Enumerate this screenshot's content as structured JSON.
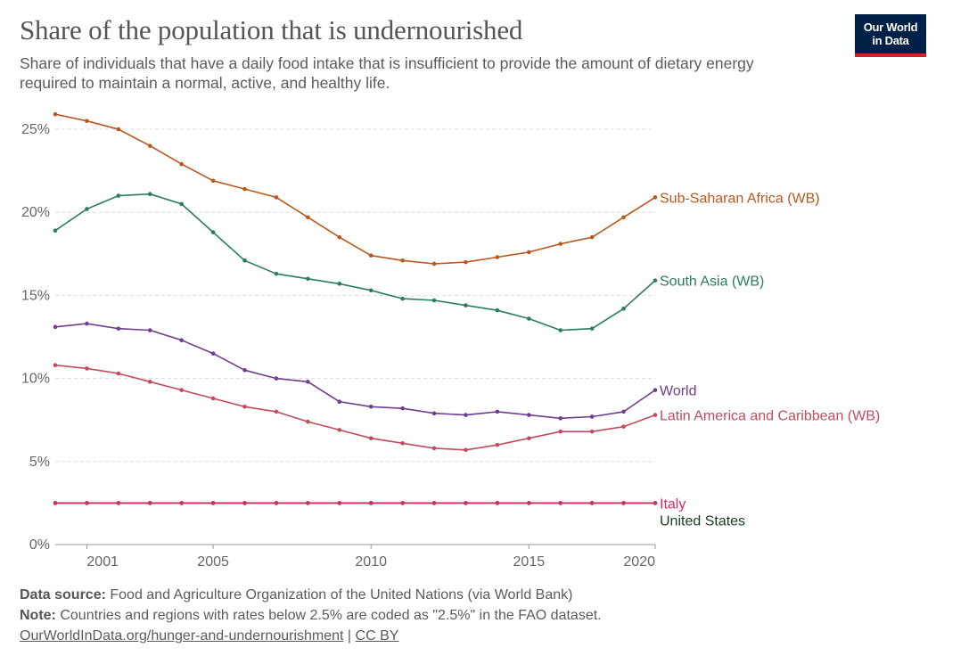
{
  "header": {
    "title": "Share of the population that is undernourished",
    "subtitle": "Share of individuals that have a daily food intake that is insufficient to provide the amount of dietary energy required to maintain a normal, active, and healthy life."
  },
  "logo": {
    "line1": "Our World",
    "line2": "in Data",
    "bg_color": "#002147",
    "accent_color": "#ce261e"
  },
  "chart_data": {
    "type": "line",
    "title": "Share of the population that is undernourished",
    "xlabel": "",
    "ylabel": "",
    "x_ticks": [
      2001,
      2005,
      2010,
      2015,
      2020
    ],
    "x_tick_labels": [
      "2001",
      "2005",
      "2010",
      "2015",
      "2020"
    ],
    "y_ticks": [
      0,
      5,
      10,
      15,
      20,
      25
    ],
    "y_tick_labels": [
      "0%",
      "5%",
      "10%",
      "15%",
      "20%",
      "25%"
    ],
    "xlim": [
      2000,
      2019
    ],
    "ylim": [
      0,
      25
    ],
    "grid": true,
    "x": [
      2000,
      2001,
      2002,
      2003,
      2004,
      2005,
      2006,
      2007,
      2008,
      2009,
      2010,
      2011,
      2012,
      2013,
      2014,
      2015,
      2016,
      2017,
      2018,
      2019
    ],
    "series": [
      {
        "name": "Sub-Saharan Africa (WB)",
        "color": "#b9571f",
        "values": [
          25.9,
          25.5,
          25.0,
          24.0,
          22.9,
          21.9,
          21.4,
          20.9,
          19.7,
          18.5,
          17.4,
          17.1,
          16.9,
          17.0,
          17.3,
          17.6,
          18.1,
          18.5,
          19.7,
          20.9
        ]
      },
      {
        "name": "South Asia (WB)",
        "color": "#2a7e5c",
        "values": [
          18.9,
          20.2,
          21.0,
          21.1,
          20.5,
          18.8,
          17.1,
          16.3,
          16.0,
          15.7,
          15.3,
          14.8,
          14.7,
          14.4,
          14.1,
          13.6,
          12.9,
          13.0,
          14.2,
          15.9
        ]
      },
      {
        "name": "World",
        "color": "#6d3e91",
        "values": [
          13.1,
          13.3,
          13.0,
          12.9,
          12.3,
          11.5,
          10.5,
          10.0,
          9.8,
          8.6,
          8.3,
          8.2,
          7.9,
          7.8,
          8.0,
          7.8,
          7.6,
          7.7,
          8.0,
          9.3
        ]
      },
      {
        "name": "Latin America and Caribbean (WB)",
        "color": "#c24c5c",
        "values": [
          10.8,
          10.6,
          10.3,
          9.8,
          9.3,
          8.8,
          8.3,
          8.0,
          7.4,
          6.9,
          6.4,
          6.1,
          5.8,
          5.7,
          6.0,
          6.4,
          6.8,
          6.8,
          7.1,
          7.8
        ]
      },
      {
        "name": "United States",
        "color": "#19401e",
        "values": [
          2.5,
          2.5,
          2.5,
          2.5,
          2.5,
          2.5,
          2.5,
          2.5,
          2.5,
          2.5,
          2.5,
          2.5,
          2.5,
          2.5,
          2.5,
          2.5,
          2.5,
          2.5,
          2.5,
          2.5
        ]
      },
      {
        "name": "Italy",
        "color": "#cf2e6a",
        "values": [
          2.5,
          2.5,
          2.5,
          2.5,
          2.5,
          2.5,
          2.5,
          2.5,
          2.5,
          2.5,
          2.5,
          2.5,
          2.5,
          2.5,
          2.5,
          2.5,
          2.5,
          2.5,
          2.5,
          2.5
        ]
      }
    ],
    "label_order": [
      "Sub-Saharan Africa (WB)",
      "South Asia (WB)",
      "World",
      "Latin America and Caribbean (WB)",
      "Italy",
      "United States"
    ]
  },
  "footer": {
    "source_label": "Data source:",
    "source_text": "Food and Agriculture Organization of the United Nations (via World Bank)",
    "note_label": "Note:",
    "note_text": "Countries and regions with rates below 2.5% are coded as \"2.5%\" in the FAO dataset.",
    "link_text": "OurWorldInData.org/hunger-and-undernourishment",
    "separator": "|",
    "license_text": "CC BY"
  }
}
